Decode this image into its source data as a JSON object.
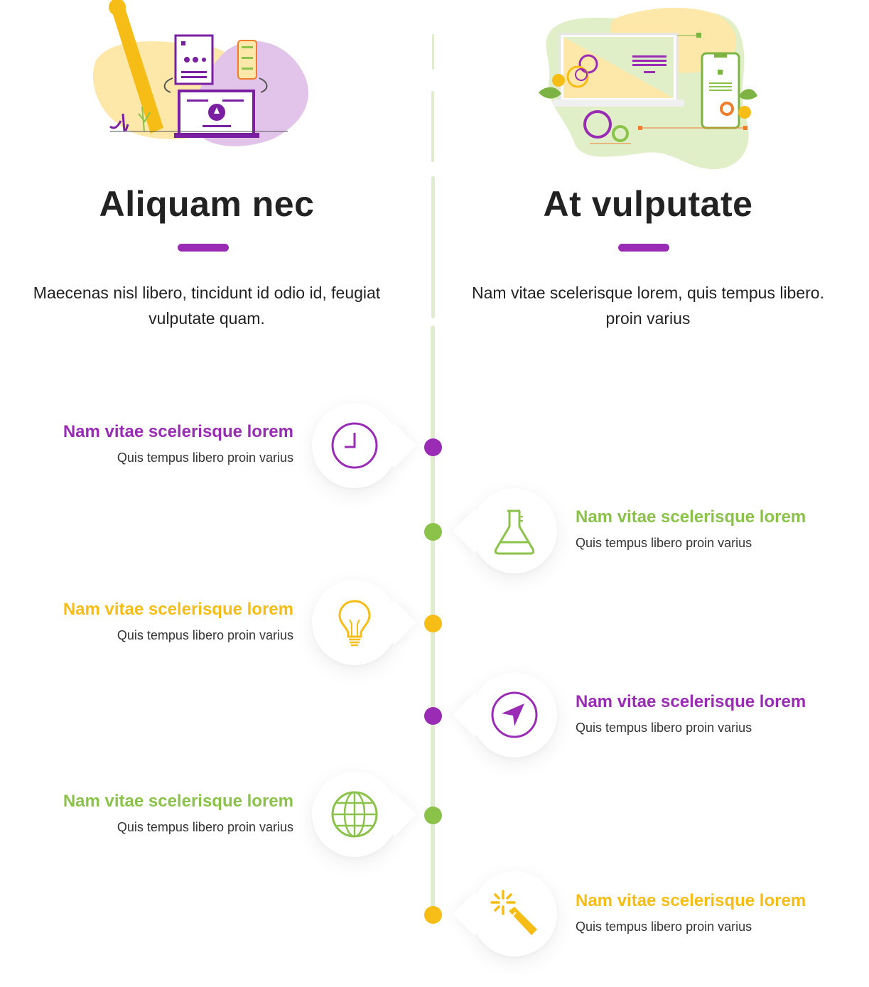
{
  "colors": {
    "purple": "#9a2bb5",
    "green": "#8bc34a",
    "yellow": "#f6bd16",
    "line": "#dfeccd"
  },
  "columns": [
    {
      "title": "Aliquam nec",
      "description": "Maecenas nisl libero, tincidunt id odio id, feugiat vulputate quam."
    },
    {
      "title": "At vulputate",
      "description": "Nam vitae scelerisque lorem, quis tempus libero. proin varius"
    }
  ],
  "timeline": [
    {
      "side": "left",
      "color": "purple",
      "icon": "clock-icon",
      "title": "Nam vitae scelerisque lorem",
      "subtitle": "Quis tempus libero proin varius"
    },
    {
      "side": "right",
      "color": "green",
      "icon": "flask-icon",
      "title": "Nam vitae scelerisque lorem",
      "subtitle": "Quis tempus libero proin varius"
    },
    {
      "side": "left",
      "color": "yellow",
      "icon": "lightbulb-icon",
      "title": "Nam vitae scelerisque lorem",
      "subtitle": "Quis tempus libero proin varius"
    },
    {
      "side": "right",
      "color": "purple",
      "icon": "navigation-icon",
      "title": "Nam vitae scelerisque lorem",
      "subtitle": "Quis tempus libero proin varius"
    },
    {
      "side": "left",
      "color": "green",
      "icon": "globe-icon",
      "title": "Nam vitae scelerisque lorem",
      "subtitle": "Quis tempus libero proin varius"
    },
    {
      "side": "right",
      "color": "yellow",
      "icon": "magic-wand-icon",
      "title": "Nam vitae scelerisque lorem",
      "subtitle": "Quis tempus libero proin varius"
    }
  ]
}
